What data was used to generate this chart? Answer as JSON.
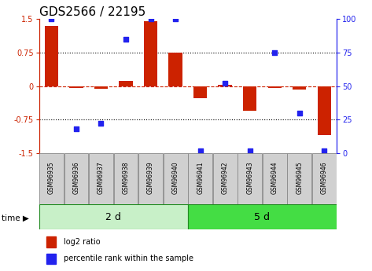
{
  "title": "GDS2566 / 22195",
  "samples": [
    "GSM96935",
    "GSM96936",
    "GSM96937",
    "GSM96938",
    "GSM96939",
    "GSM96940",
    "GSM96941",
    "GSM96942",
    "GSM96943",
    "GSM96944",
    "GSM96945",
    "GSM96946"
  ],
  "log2_ratio": [
    1.35,
    -0.05,
    -0.06,
    0.12,
    1.45,
    0.75,
    -0.28,
    0.02,
    -0.55,
    -0.05,
    -0.08,
    -1.1
  ],
  "percentile": [
    100,
    18,
    22,
    85,
    100,
    100,
    2,
    52,
    2,
    75,
    30,
    2
  ],
  "groups": [
    {
      "label": "2 d",
      "start": 0,
      "end": 6,
      "color": "#c8f0c8"
    },
    {
      "label": "5 d",
      "start": 6,
      "end": 12,
      "color": "#44dd44"
    }
  ],
  "bar_color": "#cc2200",
  "dot_color": "#2222ee",
  "ylim_left": [
    -1.5,
    1.5
  ],
  "ylim_right": [
    0,
    100
  ],
  "yticks_left": [
    -1.5,
    -0.75,
    0,
    0.75,
    1.5
  ],
  "yticks_right": [
    0,
    25,
    50,
    75,
    100
  ],
  "bg_color": "#ffffff",
  "legend_items": [
    {
      "label": "log2 ratio",
      "color": "#cc2200"
    },
    {
      "label": "percentile rank within the sample",
      "color": "#2222ee"
    }
  ],
  "title_fontsize": 11,
  "tick_fontsize": 7,
  "label_fontsize": 5.5,
  "group_label_fontsize": 9,
  "bar_width": 0.55
}
